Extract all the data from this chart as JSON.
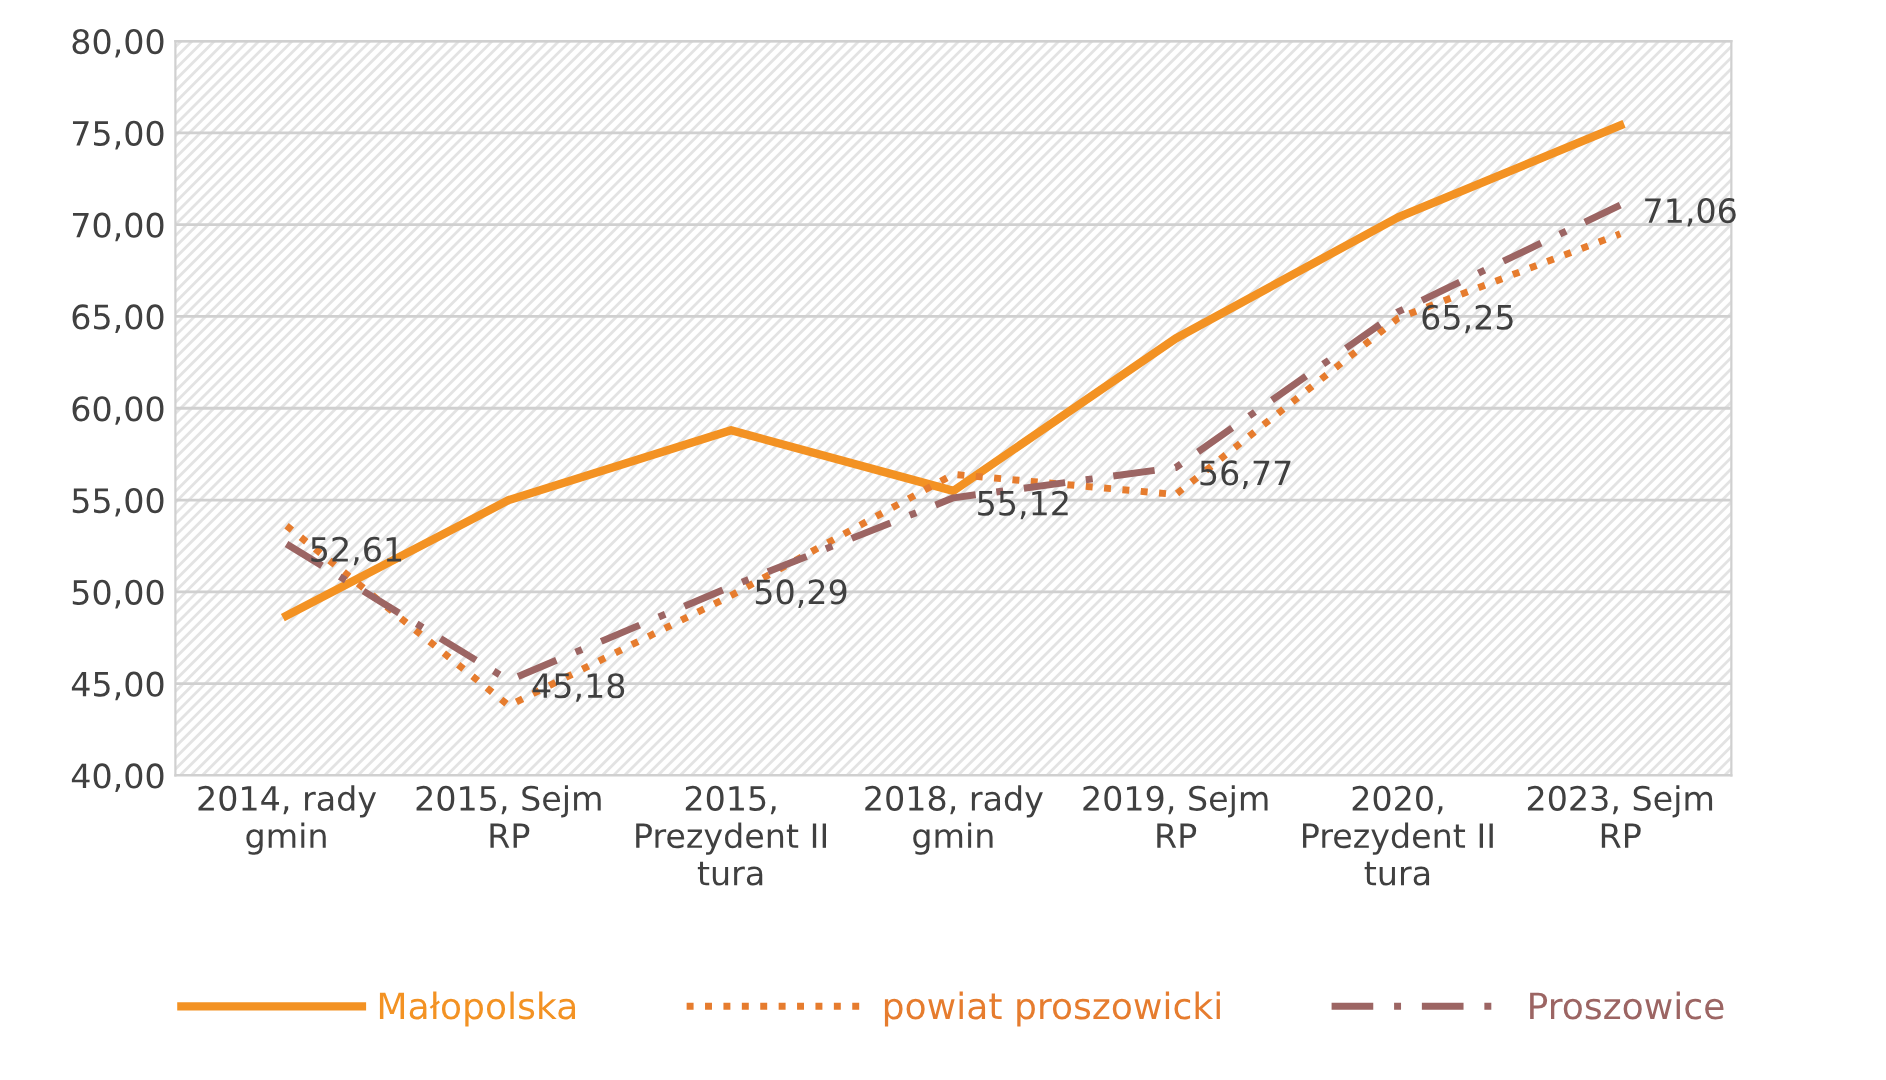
{
  "chart_data": {
    "type": "line",
    "categories": [
      "2014, rady\ngmin",
      "2015, Sejm\nRP",
      "2015,\nPrezydent II\ntura",
      "2018, rady\ngmin",
      "2019, Sejm\nRP",
      "2020,\nPrezydent II\ntura",
      "2023, Sejm\nRP"
    ],
    "series": [
      {
        "name": "Małopolska",
        "color": "#f39223",
        "line_style": "solid",
        "values": [
          48.7,
          55.0,
          58.8,
          55.5,
          63.8,
          70.4,
          75.4
        ]
      },
      {
        "name": "powiat proszowicki",
        "color": "#e67c2e",
        "line_style": "dotted",
        "values": [
          53.6,
          43.8,
          49.8,
          56.4,
          55.3,
          64.9,
          69.5
        ]
      },
      {
        "name": "Proszowice",
        "color": "#9c6563",
        "line_style": "dashed",
        "values": [
          52.61,
          45.18,
          50.29,
          55.12,
          56.77,
          65.25,
          71.06
        ],
        "value_labels": [
          "52,61",
          "45,18",
          "50,29",
          "55,12",
          "56,77",
          "65,25",
          "71,06"
        ]
      }
    ],
    "ylim": [
      40,
      80
    ],
    "yticks": [
      {
        "value": 40,
        "label": "40,00"
      },
      {
        "value": 45,
        "label": "45,00"
      },
      {
        "value": 50,
        "label": "50,00"
      },
      {
        "value": 55,
        "label": "55,00"
      },
      {
        "value": 60,
        "label": "60,00"
      },
      {
        "value": 65,
        "label": "65,00"
      },
      {
        "value": 70,
        "label": "70,00"
      },
      {
        "value": 75,
        "label": "75,00"
      },
      {
        "value": 80,
        "label": "80,00"
      }
    ],
    "grid": "y",
    "legend": "bottom",
    "marker": "none"
  }
}
